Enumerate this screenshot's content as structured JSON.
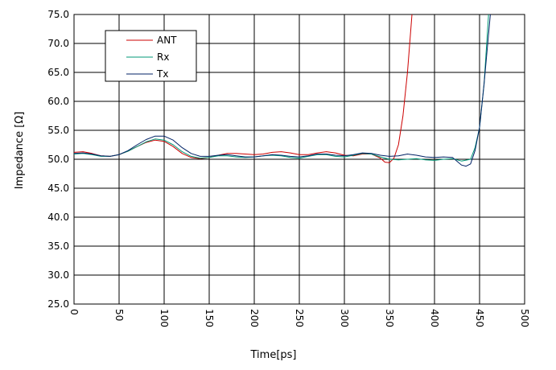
{
  "chart_data": {
    "type": "line",
    "title": "",
    "xlabel": "Time[ps]",
    "ylabel": "Impedance [Ω]",
    "xlim": [
      0,
      500
    ],
    "ylim": [
      25,
      75
    ],
    "x_ticks": [
      "0",
      "50",
      "100",
      "150",
      "200",
      "250",
      "300",
      "350",
      "400",
      "450",
      "500"
    ],
    "y_ticks": [
      "75.0",
      "70.0",
      "65.0",
      "60.0",
      "55.0",
      "50.0",
      "45.0",
      "40.0",
      "35.0",
      "30.0",
      "25.0"
    ],
    "grid": true,
    "legend_position": "top-left",
    "series": [
      {
        "name": "ANT",
        "color": "#cc0000",
        "points": [
          [
            0,
            51.2
          ],
          [
            10,
            51.3
          ],
          [
            20,
            51.0
          ],
          [
            30,
            50.6
          ],
          [
            40,
            50.5
          ],
          [
            50,
            50.8
          ],
          [
            60,
            51.4
          ],
          [
            70,
            52.2
          ],
          [
            80,
            52.9
          ],
          [
            90,
            53.3
          ],
          [
            100,
            53.1
          ],
          [
            110,
            52.2
          ],
          [
            120,
            51.0
          ],
          [
            130,
            50.3
          ],
          [
            140,
            50.1
          ],
          [
            150,
            50.3
          ],
          [
            160,
            50.7
          ],
          [
            170,
            51.0
          ],
          [
            180,
            51.0
          ],
          [
            190,
            50.9
          ],
          [
            200,
            50.8
          ],
          [
            210,
            50.9
          ],
          [
            220,
            51.2
          ],
          [
            230,
            51.3
          ],
          [
            240,
            51.1
          ],
          [
            250,
            50.8
          ],
          [
            260,
            50.8
          ],
          [
            270,
            51.1
          ],
          [
            280,
            51.3
          ],
          [
            290,
            51.1
          ],
          [
            300,
            50.7
          ],
          [
            310,
            50.6
          ],
          [
            320,
            50.9
          ],
          [
            330,
            50.9
          ],
          [
            340,
            50.2
          ],
          [
            345,
            49.5
          ],
          [
            350,
            49.4
          ],
          [
            355,
            50.2
          ],
          [
            360,
            52.5
          ],
          [
            365,
            57.5
          ],
          [
            370,
            65.0
          ],
          [
            375,
            75.0
          ]
        ]
      },
      {
        "name": "Rx",
        "color": "#009977",
        "points": [
          [
            0,
            50.9
          ],
          [
            10,
            51.0
          ],
          [
            20,
            50.8
          ],
          [
            30,
            50.5
          ],
          [
            40,
            50.5
          ],
          [
            50,
            50.8
          ],
          [
            60,
            51.4
          ],
          [
            70,
            52.2
          ],
          [
            80,
            53.0
          ],
          [
            90,
            53.5
          ],
          [
            100,
            53.3
          ],
          [
            110,
            52.5
          ],
          [
            120,
            51.3
          ],
          [
            130,
            50.5
          ],
          [
            140,
            50.2
          ],
          [
            150,
            50.3
          ],
          [
            160,
            50.6
          ],
          [
            170,
            50.6
          ],
          [
            180,
            50.4
          ],
          [
            190,
            50.3
          ],
          [
            200,
            50.4
          ],
          [
            210,
            50.6
          ],
          [
            220,
            50.7
          ],
          [
            230,
            50.6
          ],
          [
            240,
            50.3
          ],
          [
            250,
            50.2
          ],
          [
            260,
            50.5
          ],
          [
            270,
            50.8
          ],
          [
            280,
            50.8
          ],
          [
            290,
            50.5
          ],
          [
            300,
            50.4
          ],
          [
            310,
            50.7
          ],
          [
            320,
            51.0
          ],
          [
            330,
            50.9
          ],
          [
            340,
            50.4
          ],
          [
            350,
            50.0
          ],
          [
            360,
            49.9
          ],
          [
            370,
            50.0
          ],
          [
            380,
            50.1
          ],
          [
            390,
            49.9
          ],
          [
            400,
            49.8
          ],
          [
            410,
            50.0
          ],
          [
            420,
            50.1
          ],
          [
            430,
            49.7
          ],
          [
            440,
            50.0
          ],
          [
            445,
            52.0
          ],
          [
            450,
            55.5
          ],
          [
            455,
            63.0
          ],
          [
            460,
            75.0
          ]
        ]
      },
      {
        "name": "Tx",
        "color": "#002266",
        "points": [
          [
            0,
            51.0
          ],
          [
            10,
            51.1
          ],
          [
            20,
            50.9
          ],
          [
            30,
            50.6
          ],
          [
            40,
            50.5
          ],
          [
            50,
            50.8
          ],
          [
            60,
            51.5
          ],
          [
            70,
            52.5
          ],
          [
            80,
            53.4
          ],
          [
            90,
            54.0
          ],
          [
            100,
            54.0
          ],
          [
            110,
            53.3
          ],
          [
            120,
            52.0
          ],
          [
            130,
            51.0
          ],
          [
            140,
            50.5
          ],
          [
            150,
            50.5
          ],
          [
            160,
            50.7
          ],
          [
            170,
            50.8
          ],
          [
            180,
            50.6
          ],
          [
            190,
            50.4
          ],
          [
            200,
            50.4
          ],
          [
            210,
            50.6
          ],
          [
            220,
            50.8
          ],
          [
            230,
            50.7
          ],
          [
            240,
            50.5
          ],
          [
            250,
            50.4
          ],
          [
            260,
            50.6
          ],
          [
            270,
            50.9
          ],
          [
            280,
            50.9
          ],
          [
            290,
            50.7
          ],
          [
            300,
            50.6
          ],
          [
            310,
            50.8
          ],
          [
            320,
            51.1
          ],
          [
            330,
            51.0
          ],
          [
            340,
            50.7
          ],
          [
            350,
            50.5
          ],
          [
            360,
            50.6
          ],
          [
            370,
            50.9
          ],
          [
            380,
            50.7
          ],
          [
            390,
            50.4
          ],
          [
            400,
            50.3
          ],
          [
            410,
            50.4
          ],
          [
            420,
            50.3
          ],
          [
            430,
            49.0
          ],
          [
            435,
            48.8
          ],
          [
            440,
            49.2
          ],
          [
            445,
            51.5
          ],
          [
            450,
            55.5
          ],
          [
            455,
            63.0
          ],
          [
            462,
            75.0
          ]
        ]
      }
    ]
  }
}
